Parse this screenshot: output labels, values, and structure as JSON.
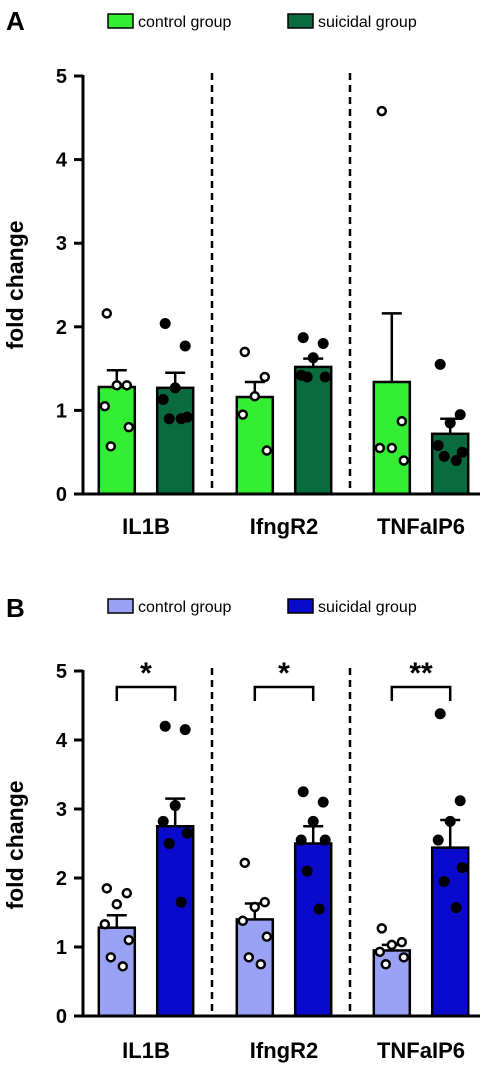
{
  "chart_data": [
    {
      "type": "bar",
      "panel": "A",
      "title": "",
      "xlabel": "",
      "ylabel": "fold change",
      "ylim": [
        0,
        5
      ],
      "yticks": [
        "0",
        "1",
        "2",
        "3",
        "4",
        "5"
      ],
      "legend_position": "top",
      "categories": [
        "IL1B",
        "IfngR2",
        "TNFaIP6"
      ],
      "series": [
        {
          "name": "control group",
          "color": "#33ee33",
          "point_style": "open",
          "values": [
            1.28,
            1.16,
            1.34
          ],
          "sem": [
            0.2,
            0.18,
            0.82
          ],
          "points": [
            [
              2.16,
              1.3,
              1.3,
              1.05,
              0.8,
              0.57
            ],
            [
              1.7,
              1.4,
              1.17,
              0.95,
              0.52
            ],
            [
              4.58,
              0.87,
              0.55,
              0.55,
              0.4
            ]
          ]
        },
        {
          "name": "suicidal group",
          "color": "#0a6b3e",
          "point_style": "filled",
          "values": [
            1.27,
            1.52,
            0.72
          ],
          "sem": [
            0.18,
            0.1,
            0.18
          ],
          "points": [
            [
              2.04,
              1.77,
              1.27,
              1.13,
              0.92,
              0.9,
              0.9
            ],
            [
              1.87,
              1.8,
              1.63,
              1.42,
              1.4,
              1.4
            ],
            [
              1.55,
              0.95,
              0.85,
              0.58,
              0.5,
              0.45,
              0.4
            ]
          ]
        }
      ],
      "significance": []
    },
    {
      "type": "bar",
      "panel": "B",
      "title": "",
      "xlabel": "",
      "ylabel": "fold change",
      "ylim": [
        0,
        5
      ],
      "yticks": [
        "0",
        "1",
        "2",
        "3",
        "4",
        "5"
      ],
      "legend_position": "top",
      "categories": [
        "IL1B",
        "IfngR2",
        "TNFaIP6"
      ],
      "series": [
        {
          "name": "control group",
          "color": "#9aa2f5",
          "point_style": "open",
          "values": [
            1.28,
            1.4,
            0.95
          ],
          "sem": [
            0.18,
            0.23,
            0.08
          ],
          "points": [
            [
              1.85,
              1.78,
              1.62,
              1.33,
              1.1,
              0.85,
              0.72
            ],
            [
              2.22,
              1.65,
              1.58,
              1.38,
              1.15,
              0.85,
              0.75
            ],
            [
              1.27,
              1.07,
              1.03,
              0.93,
              0.85,
              0.75
            ]
          ]
        },
        {
          "name": "suicidal group",
          "color": "#0a0acc",
          "point_style": "filled",
          "values": [
            2.75,
            2.5,
            2.44
          ],
          "sem": [
            0.4,
            0.25,
            0.4
          ],
          "points": [
            [
              4.2,
              4.15,
              3.05,
              2.82,
              2.65,
              2.5,
              1.65
            ],
            [
              3.25,
              3.1,
              2.82,
              2.55,
              2.55,
              2.1,
              1.55
            ],
            [
              4.38,
              3.12,
              2.82,
              2.55,
              2.15,
              1.95,
              1.57
            ]
          ]
        }
      ],
      "significance": [
        "*",
        "*",
        "**"
      ]
    }
  ]
}
